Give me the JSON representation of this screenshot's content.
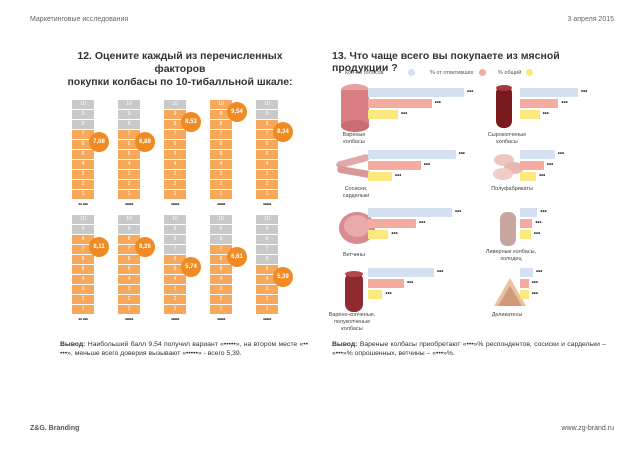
{
  "header": {
    "left": "Маркетинговые исследования",
    "right": "3 апреля 2015"
  },
  "footer": {
    "left": "Z&G. Branding",
    "right": "www.zg-brand.ru"
  },
  "q12": {
    "title_l1": "12. Оцените каждый из перечисленных факторов",
    "title_l2": "покупки колбасы по 10-тибалльной шкале:",
    "top_row": [
      {
        "score": "7,08",
        "label": "•• •••",
        "value": 7.08
      },
      {
        "score": "6,89",
        "label": "•••••",
        "value": 6.89
      },
      {
        "score": "8,53",
        "label": "•••••",
        "value": 8.53
      },
      {
        "score": "9,54",
        "label": "•••••",
        "value": 9.54
      },
      {
        "score": "8,34",
        "label": "•••••",
        "value": 8.34
      }
    ],
    "bottom_row": [
      {
        "score": "8,11",
        "label": "•• •••",
        "value": 8.11
      },
      {
        "score": "8,26",
        "label": "•••••",
        "value": 8.26
      },
      {
        "score": "5,74",
        "label": "•••••",
        "value": 5.74
      },
      {
        "score": "6,61",
        "label": "•••••",
        "value": 6.61
      },
      {
        "score": "5,39",
        "label": "•••••",
        "value": 5.39
      }
    ],
    "conclusion_label": "Вывод:",
    "conclusion_text": "Наибольший балл 9,54 получил вариант «•••••», на втором месте «•• •••», меньше всего доверия вызывают «•••••» - всего 5,39."
  },
  "q13": {
    "title": "13. Что чаще всего вы покупаете из мясной продукции ?",
    "legend": [
      "Кол-во голосов",
      "% от ответивших",
      "% общий"
    ],
    "colors": {
      "votes": "#d5e1f1",
      "resp": "#f4aca0",
      "total": "#fbe980"
    },
    "items": [
      {
        "name": "Вареные колбасы",
        "v1": "•••",
        "v2": "•••",
        "v3": "•••",
        "w": [
          0.8,
          0.53,
          0.25
        ]
      },
      {
        "name": "Сырокопченые колбасы",
        "v1": "•••",
        "v2": "•••",
        "v3": "•••",
        "w": [
          0.8,
          0.53,
          0.27
        ]
      },
      {
        "name": "Сосиски, сардельки",
        "v1": "•••",
        "v2": "•••",
        "v3": "•••",
        "w": [
          0.73,
          0.44,
          0.2
        ]
      },
      {
        "name": "Полуфабрикаты",
        "v1": "•••",
        "v2": "•••",
        "v3": "•••",
        "w": [
          0.48,
          0.33,
          0.22
        ]
      },
      {
        "name": "Ветчины",
        "v1": "•••",
        "v2": "•••",
        "v3": "•••",
        "w": [
          0.7,
          0.4,
          0.17
        ]
      },
      {
        "name": "Ливерные колбасы, холодец",
        "v1": "•••",
        "v2": "•••",
        "v3": "•••",
        "w": [
          0.24,
          0.17,
          0.15
        ]
      },
      {
        "name": "Варено-копченые, полукопченые колбасы",
        "v1": "•••",
        "v2": "•••",
        "v3": "•••",
        "w": [
          0.55,
          0.3,
          0.12
        ]
      },
      {
        "name": "Деликатесы",
        "v1": "•••",
        "v2": "•••",
        "v3": "•••",
        "w": [
          0.18,
          0.12,
          0.12
        ]
      }
    ],
    "conclusion_label": "Вывод:",
    "conclusion_text": "Вареные колбасы приобретают «•••»% респондентов, сосиски и сардельки – «•••»% опрошенных, ветчины – «•••»%."
  }
}
